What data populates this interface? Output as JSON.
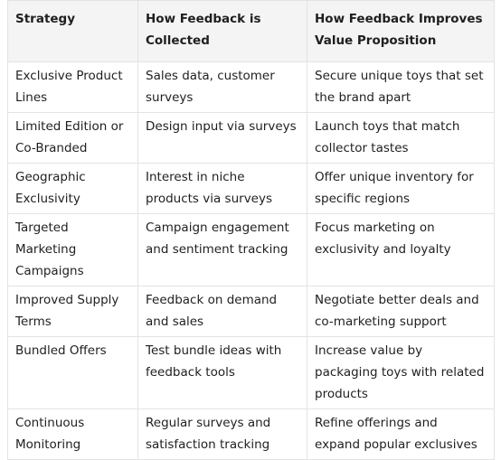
{
  "table": {
    "header": [
      "Strategy",
      "How Feedback is Collected",
      "How Feedback Improves Value Proposition"
    ],
    "rows": [
      [
        "Exclusive Product Lines",
        "Sales data, customer surveys",
        "Secure unique toys that set the brand apart"
      ],
      [
        "Limited Edition or Co-Branded",
        "Design input via surveys",
        "Launch toys that match collector tastes"
      ],
      [
        "Geographic Exclusivity",
        "Interest in niche products via surveys",
        "Offer unique inventory for specific regions"
      ],
      [
        "Targeted Marketing Campaigns",
        "Campaign engagement and sentiment tracking",
        "Focus marketing on exclusivity and loyalty"
      ],
      [
        "Improved Supply Terms",
        "Feedback on demand and sales",
        "Negotiate better deals and co-marketing support"
      ],
      [
        "Bundled Offers",
        "Test bundle ideas with feedback tools",
        "Increase value by packaging toys with related products"
      ],
      [
        "Continuous Monitoring",
        "Regular surveys and satisfaction tracking",
        "Refine offerings and expand popular exclusives"
      ]
    ]
  }
}
